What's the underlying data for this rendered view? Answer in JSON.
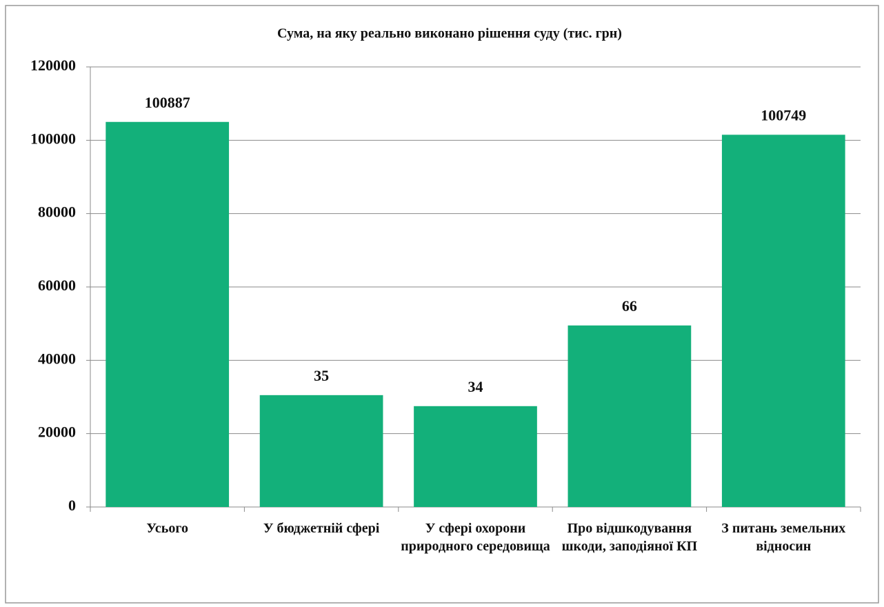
{
  "chart_data": {
    "type": "bar",
    "title": "Сума, на яку реально виконано рішення суду (тис. грн)",
    "categories": [
      "Усього",
      "У бюджетній сфері",
      "У сфері охорони природного середовища",
      "Про відшкодування шкоди, заподіяної КП",
      "З питань земельних відносин"
    ],
    "values": [
      105000,
      30500,
      27500,
      49500,
      101500
    ],
    "annotations": [
      100887,
      35,
      34,
      66,
      100749
    ],
    "color": "#13b07a",
    "ylim": [
      0,
      120000
    ],
    "yticks": [
      0,
      20000,
      40000,
      60000,
      80000,
      100000,
      120000
    ],
    "grid": true
  }
}
